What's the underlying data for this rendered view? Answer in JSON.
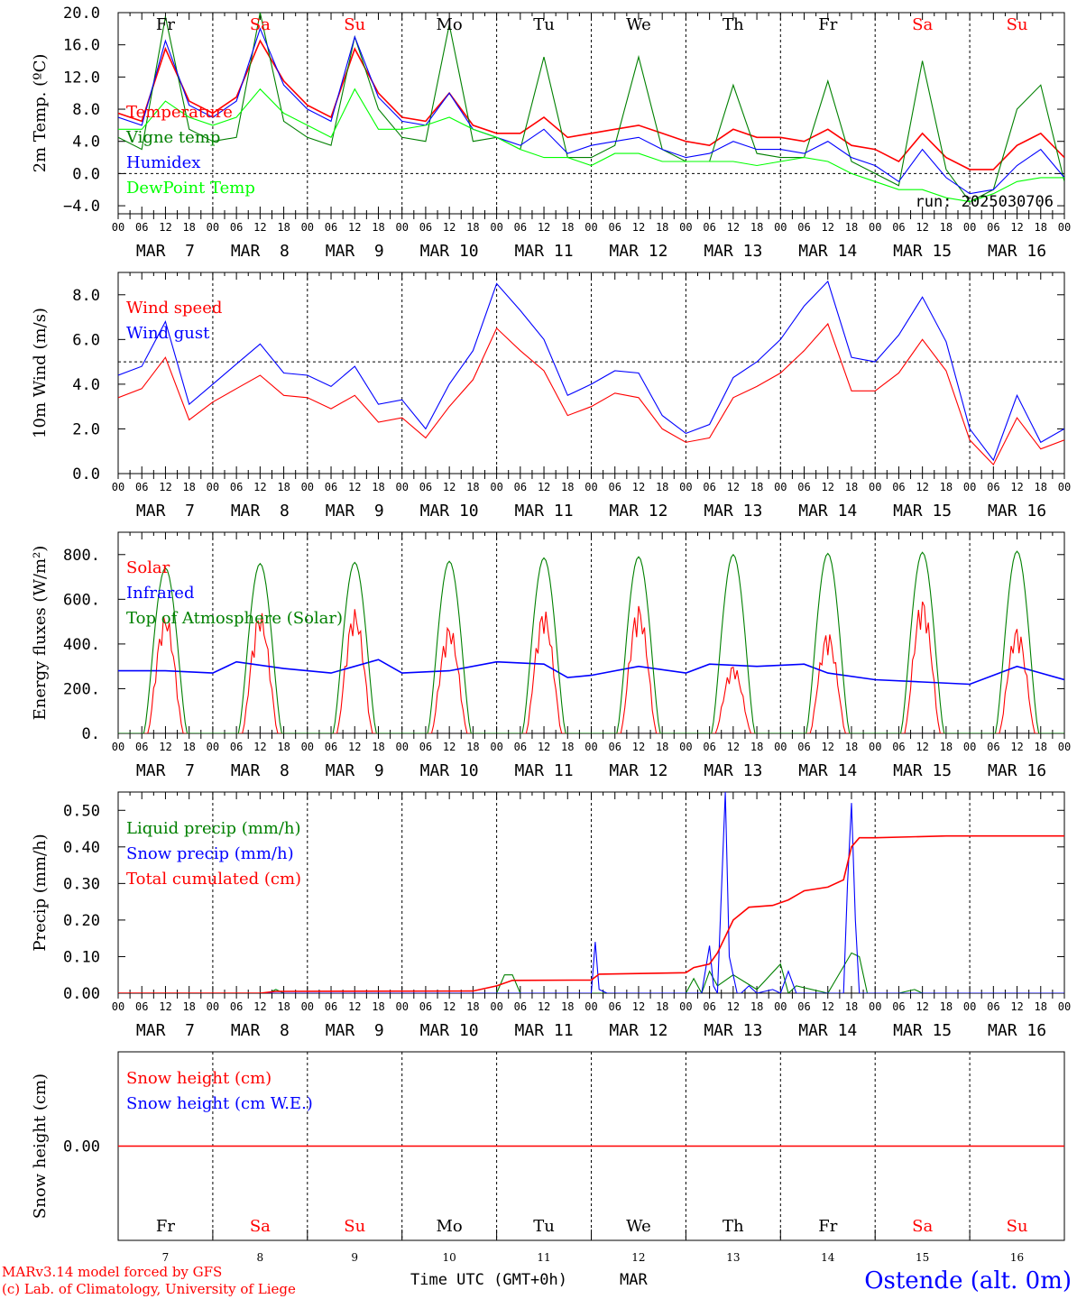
{
  "run_label": "run: 2025030706",
  "footer": {
    "model": "MARv3.14 model forced by GFS",
    "copyright": "(c) Lab. of Climatology, University of Liege",
    "xlabel": "Time UTC (GMT+0h)",
    "month": "MAR",
    "station": "Ostende (alt. 0m)"
  },
  "days": [
    "Fr",
    "Sa",
    "Su",
    "Mo",
    "Tu",
    "We",
    "Th",
    "Fr",
    "Sa",
    "Su"
  ],
  "weekend_flags": [
    false,
    true,
    true,
    false,
    false,
    false,
    false,
    false,
    true,
    true
  ],
  "date_labels": [
    "MAR  7",
    "MAR  8",
    "MAR  9",
    "MAR 10",
    "MAR 11",
    "MAR 12",
    "MAR 13",
    "MAR 14",
    "MAR 15",
    "MAR 16"
  ],
  "day_numbers": [
    "7",
    "8",
    "9",
    "10",
    "11",
    "12",
    "13",
    "14",
    "15",
    "16"
  ],
  "hour_ticks": [
    "00",
    "06",
    "12",
    "18"
  ],
  "hour_end": "00",
  "colors": {
    "red": "#ff0000",
    "green": "#008000",
    "blue": "#0000ff",
    "lime": "#00ff00",
    "black": "#000000"
  },
  "chart_data": [
    {
      "type": "line",
      "ylabel": "2m Temp. (ºC)",
      "ylim": [
        -5,
        20
      ],
      "yticks": [
        "20.0",
        "16.0",
        "12.0",
        "8.0",
        "4.0",
        "0.0",
        "−4.0"
      ],
      "ytick_values": [
        20,
        16,
        12,
        8,
        4,
        0,
        -4
      ],
      "ref_line": 0,
      "x_hours": [
        0,
        6,
        12,
        18,
        24,
        30,
        36,
        42,
        48,
        54,
        60,
        66,
        72,
        78,
        84,
        90,
        96,
        102,
        108,
        114,
        120,
        126,
        132,
        138,
        144,
        150,
        156,
        162,
        168,
        174,
        180,
        186,
        192,
        198,
        204,
        210,
        216,
        222,
        228,
        234,
        240
      ],
      "series": [
        {
          "name": "Temperature",
          "color": "#ff0000",
          "values": [
            7.5,
            6.5,
            15.5,
            9.0,
            7.5,
            9.5,
            16.5,
            11.5,
            8.5,
            7.0,
            15.5,
            10.0,
            7.0,
            6.5,
            10.0,
            6.0,
            5.0,
            5.0,
            7.0,
            4.5,
            5.0,
            5.5,
            6.0,
            5.0,
            4.0,
            3.5,
            5.5,
            4.5,
            4.5,
            4.0,
            5.5,
            3.5,
            3.0,
            1.5,
            5.0,
            2.0,
            0.5,
            0.5,
            3.5,
            5.0,
            2.0
          ]
        },
        {
          "name": "Vigne temp",
          "color": "#008000",
          "values": [
            4.5,
            3.0,
            19.5,
            5.5,
            4.0,
            4.5,
            20.0,
            6.5,
            4.5,
            3.5,
            17.0,
            8.0,
            4.5,
            4.0,
            18.5,
            4.0,
            4.5,
            3.0,
            14.5,
            2.0,
            2.0,
            3.5,
            14.5,
            3.0,
            1.5,
            1.5,
            11.0,
            2.5,
            2.0,
            2.0,
            11.5,
            1.5,
            0.0,
            -1.5,
            14.0,
            0.5,
            -3.5,
            -2.0,
            8.0,
            11.0,
            -1.0
          ]
        },
        {
          "name": "Humidex",
          "color": "#0000ff",
          "values": [
            7.0,
            6.0,
            16.5,
            8.5,
            7.0,
            9.0,
            18.0,
            11.0,
            8.0,
            6.5,
            17.0,
            9.5,
            6.5,
            6.0,
            10.0,
            5.5,
            4.5,
            3.5,
            5.5,
            2.5,
            3.5,
            4.0,
            4.5,
            3.0,
            2.0,
            2.5,
            4.0,
            3.0,
            3.0,
            2.5,
            4.0,
            2.0,
            1.0,
            -1.0,
            3.0,
            -0.5,
            -2.5,
            -2.0,
            1.0,
            3.0,
            -0.5
          ]
        },
        {
          "name": "DewPoint Temp",
          "color": "#00ff00",
          "values": [
            5.5,
            5.5,
            9.0,
            7.0,
            6.0,
            7.0,
            10.5,
            7.5,
            6.0,
            4.5,
            10.5,
            5.5,
            5.5,
            6.0,
            7.0,
            5.5,
            4.5,
            3.0,
            2.0,
            2.0,
            1.0,
            2.5,
            2.5,
            1.5,
            1.5,
            1.5,
            1.5,
            1.0,
            1.5,
            2.0,
            1.5,
            0.0,
            -1.0,
            -2.0,
            -2.0,
            -3.0,
            -3.5,
            -2.5,
            -1.0,
            -0.5,
            -0.5
          ]
        }
      ],
      "legend": [
        "Temperature",
        "Vigne temp",
        "Humidex",
        "DewPoint Temp"
      ]
    },
    {
      "type": "line",
      "ylabel": "10m Wind (m/s)",
      "ylim": [
        0,
        9
      ],
      "yticks": [
        "8.0",
        "6.0",
        "4.0",
        "2.0",
        "0.0"
      ],
      "ytick_values": [
        8,
        6,
        4,
        2,
        0
      ],
      "ref_line": 5,
      "x_hours": [
        0,
        6,
        12,
        18,
        24,
        30,
        36,
        42,
        48,
        54,
        60,
        66,
        72,
        78,
        84,
        90,
        96,
        102,
        108,
        114,
        120,
        126,
        132,
        138,
        144,
        150,
        156,
        162,
        168,
        174,
        180,
        186,
        192,
        198,
        204,
        210,
        216,
        222,
        228,
        234,
        240
      ],
      "series": [
        {
          "name": "Wind speed",
          "color": "#ff0000",
          "values": [
            3.4,
            3.8,
            5.2,
            2.4,
            3.2,
            3.8,
            4.4,
            3.5,
            3.4,
            2.9,
            3.5,
            2.3,
            2.5,
            1.6,
            3.0,
            4.2,
            6.5,
            5.5,
            4.6,
            2.6,
            3.0,
            3.6,
            3.4,
            2.0,
            1.4,
            1.6,
            3.4,
            3.9,
            4.5,
            5.5,
            6.7,
            3.7,
            3.7,
            4.5,
            6.0,
            4.6,
            1.5,
            0.4,
            2.5,
            1.1,
            1.5
          ]
        },
        {
          "name": "Wind gust",
          "color": "#0000ff",
          "values": [
            4.4,
            4.8,
            6.8,
            3.1,
            4.0,
            4.9,
            5.8,
            4.5,
            4.4,
            3.9,
            4.8,
            3.1,
            3.3,
            2.0,
            4.0,
            5.5,
            8.5,
            7.3,
            6.0,
            3.5,
            4.0,
            4.6,
            4.5,
            2.6,
            1.8,
            2.2,
            4.3,
            5.0,
            6.0,
            7.5,
            8.6,
            5.2,
            5.0,
            6.2,
            7.9,
            5.9,
            2.0,
            0.6,
            3.5,
            1.4,
            2.0
          ]
        }
      ],
      "legend": [
        "Wind speed",
        "Wind gust"
      ]
    },
    {
      "type": "line",
      "ylabel": "Energy fluxes (W/m²)",
      "ylim": [
        0,
        900
      ],
      "yticks": [
        "800.",
        "600.",
        "400.",
        "200.",
        "0."
      ],
      "ytick_values": [
        800,
        600,
        400,
        200,
        0
      ],
      "series": [
        {
          "name": "Solar",
          "color": "#ff0000",
          "peaks": [
            540,
            550,
            560,
            490,
            560,
            580,
            310,
            460,
            610,
            480
          ]
        },
        {
          "name": "Infrared",
          "color": "#0000ff",
          "x_hours": [
            0,
            12,
            24,
            30,
            42,
            54,
            66,
            72,
            84,
            96,
            108,
            114,
            120,
            132,
            144,
            150,
            162,
            174,
            180,
            192,
            204,
            216,
            228,
            240
          ],
          "values": [
            280,
            280,
            270,
            320,
            290,
            270,
            330,
            270,
            280,
            320,
            310,
            250,
            260,
            300,
            270,
            310,
            300,
            310,
            270,
            240,
            230,
            220,
            300,
            240
          ]
        },
        {
          "name": "Top of Atmosphere (Solar)",
          "color": "#008000",
          "peaks": [
            740,
            760,
            765,
            770,
            785,
            790,
            800,
            805,
            810,
            815
          ]
        }
      ],
      "legend": [
        "Solar",
        "Infrared",
        "Top of Atmosphere (Solar)"
      ]
    },
    {
      "type": "line",
      "ylabel": "Precip (mm/h)",
      "ylim": [
        0,
        0.55
      ],
      "yticks": [
        "0.50",
        "0.40",
        "0.30",
        "0.20",
        "0.10",
        "0.00"
      ],
      "ytick_values": [
        0.5,
        0.4,
        0.3,
        0.2,
        0.1,
        0
      ],
      "series": [
        {
          "name": "Liquid precip (mm/h)",
          "color": "#008000",
          "x_hours": [
            0,
            38,
            40,
            42,
            96,
            98,
            100,
            102,
            112,
            120,
            124,
            130,
            144,
            146,
            148,
            150,
            152,
            156,
            162,
            168,
            170,
            172,
            180,
            186,
            188,
            190,
            192,
            198,
            202,
            204,
            240
          ],
          "values": [
            0,
            0,
            0.01,
            0,
            0,
            0.05,
            0.05,
            0,
            0,
            0,
            0,
            0,
            0,
            0.04,
            0,
            0.06,
            0.02,
            0.05,
            0.01,
            0.08,
            0,
            0.02,
            0,
            0.11,
            0.1,
            0,
            0,
            0,
            0.01,
            0,
            0
          ]
        },
        {
          "name": "Snow precip (mm/h)",
          "color": "#0000ff",
          "x_hours": [
            0,
            120,
            121,
            122,
            124,
            148,
            150,
            151,
            152,
            154,
            155,
            157,
            158,
            160,
            162,
            166,
            168,
            170,
            172,
            178,
            180,
            184,
            185,
            186,
            187,
            188,
            190,
            240
          ],
          "values": [
            0,
            0,
            0.14,
            0.01,
            0,
            0,
            0.13,
            0.02,
            0,
            0.55,
            0.1,
            0,
            0,
            0.02,
            0,
            0.01,
            0,
            0.06,
            0,
            0,
            0,
            0,
            0.3,
            0.52,
            0.2,
            0,
            0,
            0
          ]
        },
        {
          "name": "Total cumulated (cm)",
          "color": "#ff0000",
          "x_hours": [
            0,
            36,
            40,
            90,
            96,
            100,
            120,
            122,
            144,
            146,
            150,
            152,
            156,
            160,
            166,
            170,
            174,
            180,
            184,
            186,
            188,
            192,
            210,
            240
          ],
          "values": [
            0,
            0,
            0.005,
            0.006,
            0.02,
            0.035,
            0.036,
            0.052,
            0.056,
            0.07,
            0.08,
            0.11,
            0.2,
            0.235,
            0.24,
            0.255,
            0.28,
            0.29,
            0.31,
            0.4,
            0.425,
            0.425,
            0.43,
            0.43
          ]
        }
      ],
      "legend": [
        "Liquid precip (mm/h)",
        "Snow precip (mm/h)",
        "Total cumulated (cm)"
      ]
    },
    {
      "type": "line",
      "ylabel": "Snow height (cm)",
      "ylim": [
        -1,
        1
      ],
      "yticks": [
        "0.00"
      ],
      "ytick_values": [
        0
      ],
      "series": [
        {
          "name": "Snow height (cm)",
          "color": "#ff0000",
          "x_hours": [
            0,
            240
          ],
          "values": [
            0,
            0
          ]
        }
      ],
      "legend": [
        "Snow height (cm)",
        "Snow height (cm W.E.)"
      ],
      "legend_colors": [
        "#ff0000",
        "#0000ff"
      ]
    }
  ]
}
